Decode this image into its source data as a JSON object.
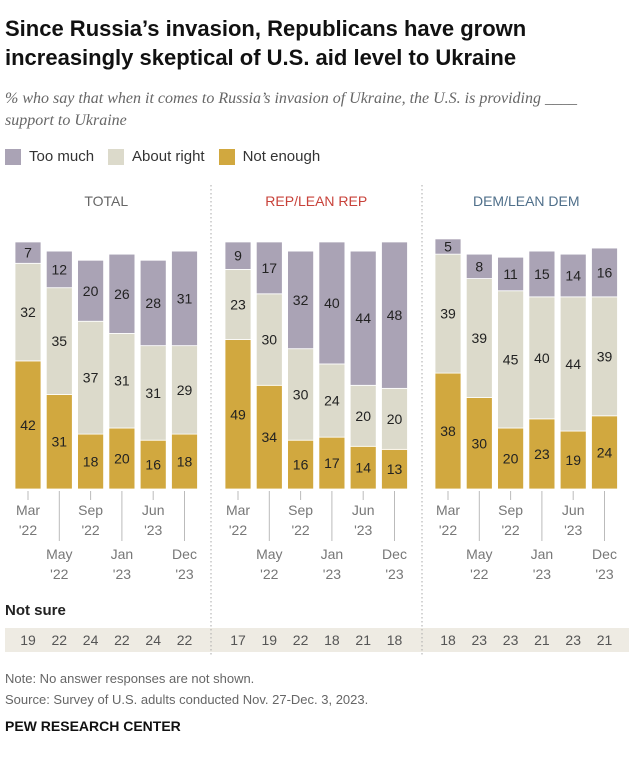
{
  "title": "Since Russia’s invasion, Republicans have grown increasingly skeptical of U.S. aid level to Ukraine",
  "subtitle": "% who say that when it comes to Russia’s invasion of Ukraine, the U.S. is providing ____ support to Ukraine",
  "legend": [
    {
      "label": "Too much",
      "color": "#aaa3b5"
    },
    {
      "label": "About right",
      "color": "#dcdacb"
    },
    {
      "label": "Not enough",
      "color": "#d1a83f"
    }
  ],
  "not_sure_label": "Not sure",
  "note": "Note: No answer responses are not shown.",
  "source": "Source: Survey of U.S. adults conducted Nov. 27-Dec. 3, 2023.",
  "brand": "PEW RESEARCH CENTER",
  "chart_data": [
    {
      "type": "bar",
      "stacked": true,
      "title": "TOTAL",
      "title_color": "#666666",
      "categories": [
        "Mar '22",
        "May '22",
        "Sep '22",
        "Jan '23",
        "Jun '23",
        "Dec '23"
      ],
      "series": [
        {
          "name": "Not enough",
          "values": [
            42,
            31,
            18,
            20,
            16,
            18
          ]
        },
        {
          "name": "About right",
          "values": [
            32,
            35,
            37,
            31,
            31,
            29
          ]
        },
        {
          "name": "Too much",
          "values": [
            7,
            12,
            20,
            26,
            28,
            31
          ]
        }
      ],
      "not_sure": [
        19,
        22,
        24,
        22,
        24,
        22
      ]
    },
    {
      "type": "bar",
      "stacked": true,
      "title": "REP/LEAN REP",
      "title_color": "#c8423a",
      "categories": [
        "Mar '22",
        "May '22",
        "Sep '22",
        "Jan '23",
        "Jun '23",
        "Dec '23"
      ],
      "series": [
        {
          "name": "Not enough",
          "values": [
            49,
            34,
            16,
            17,
            14,
            13
          ]
        },
        {
          "name": "About right",
          "values": [
            23,
            30,
            30,
            24,
            20,
            20
          ]
        },
        {
          "name": "Too much",
          "values": [
            9,
            17,
            32,
            40,
            44,
            48
          ]
        }
      ],
      "not_sure": [
        17,
        19,
        22,
        18,
        21,
        18
      ]
    },
    {
      "type": "bar",
      "stacked": true,
      "title": "DEM/LEAN DEM",
      "title_color": "#4f6f8a",
      "categories": [
        "Mar '22",
        "May '22",
        "Sep '22",
        "Jan '23",
        "Jun '23",
        "Dec '23"
      ],
      "series": [
        {
          "name": "Not enough",
          "values": [
            38,
            30,
            20,
            23,
            19,
            24
          ]
        },
        {
          "name": "About right",
          "values": [
            39,
            39,
            45,
            40,
            44,
            39
          ]
        },
        {
          "name": "Too much",
          "values": [
            5,
            8,
            11,
            15,
            14,
            16
          ]
        }
      ],
      "not_sure": [
        18,
        23,
        23,
        21,
        23,
        21
      ]
    }
  ]
}
